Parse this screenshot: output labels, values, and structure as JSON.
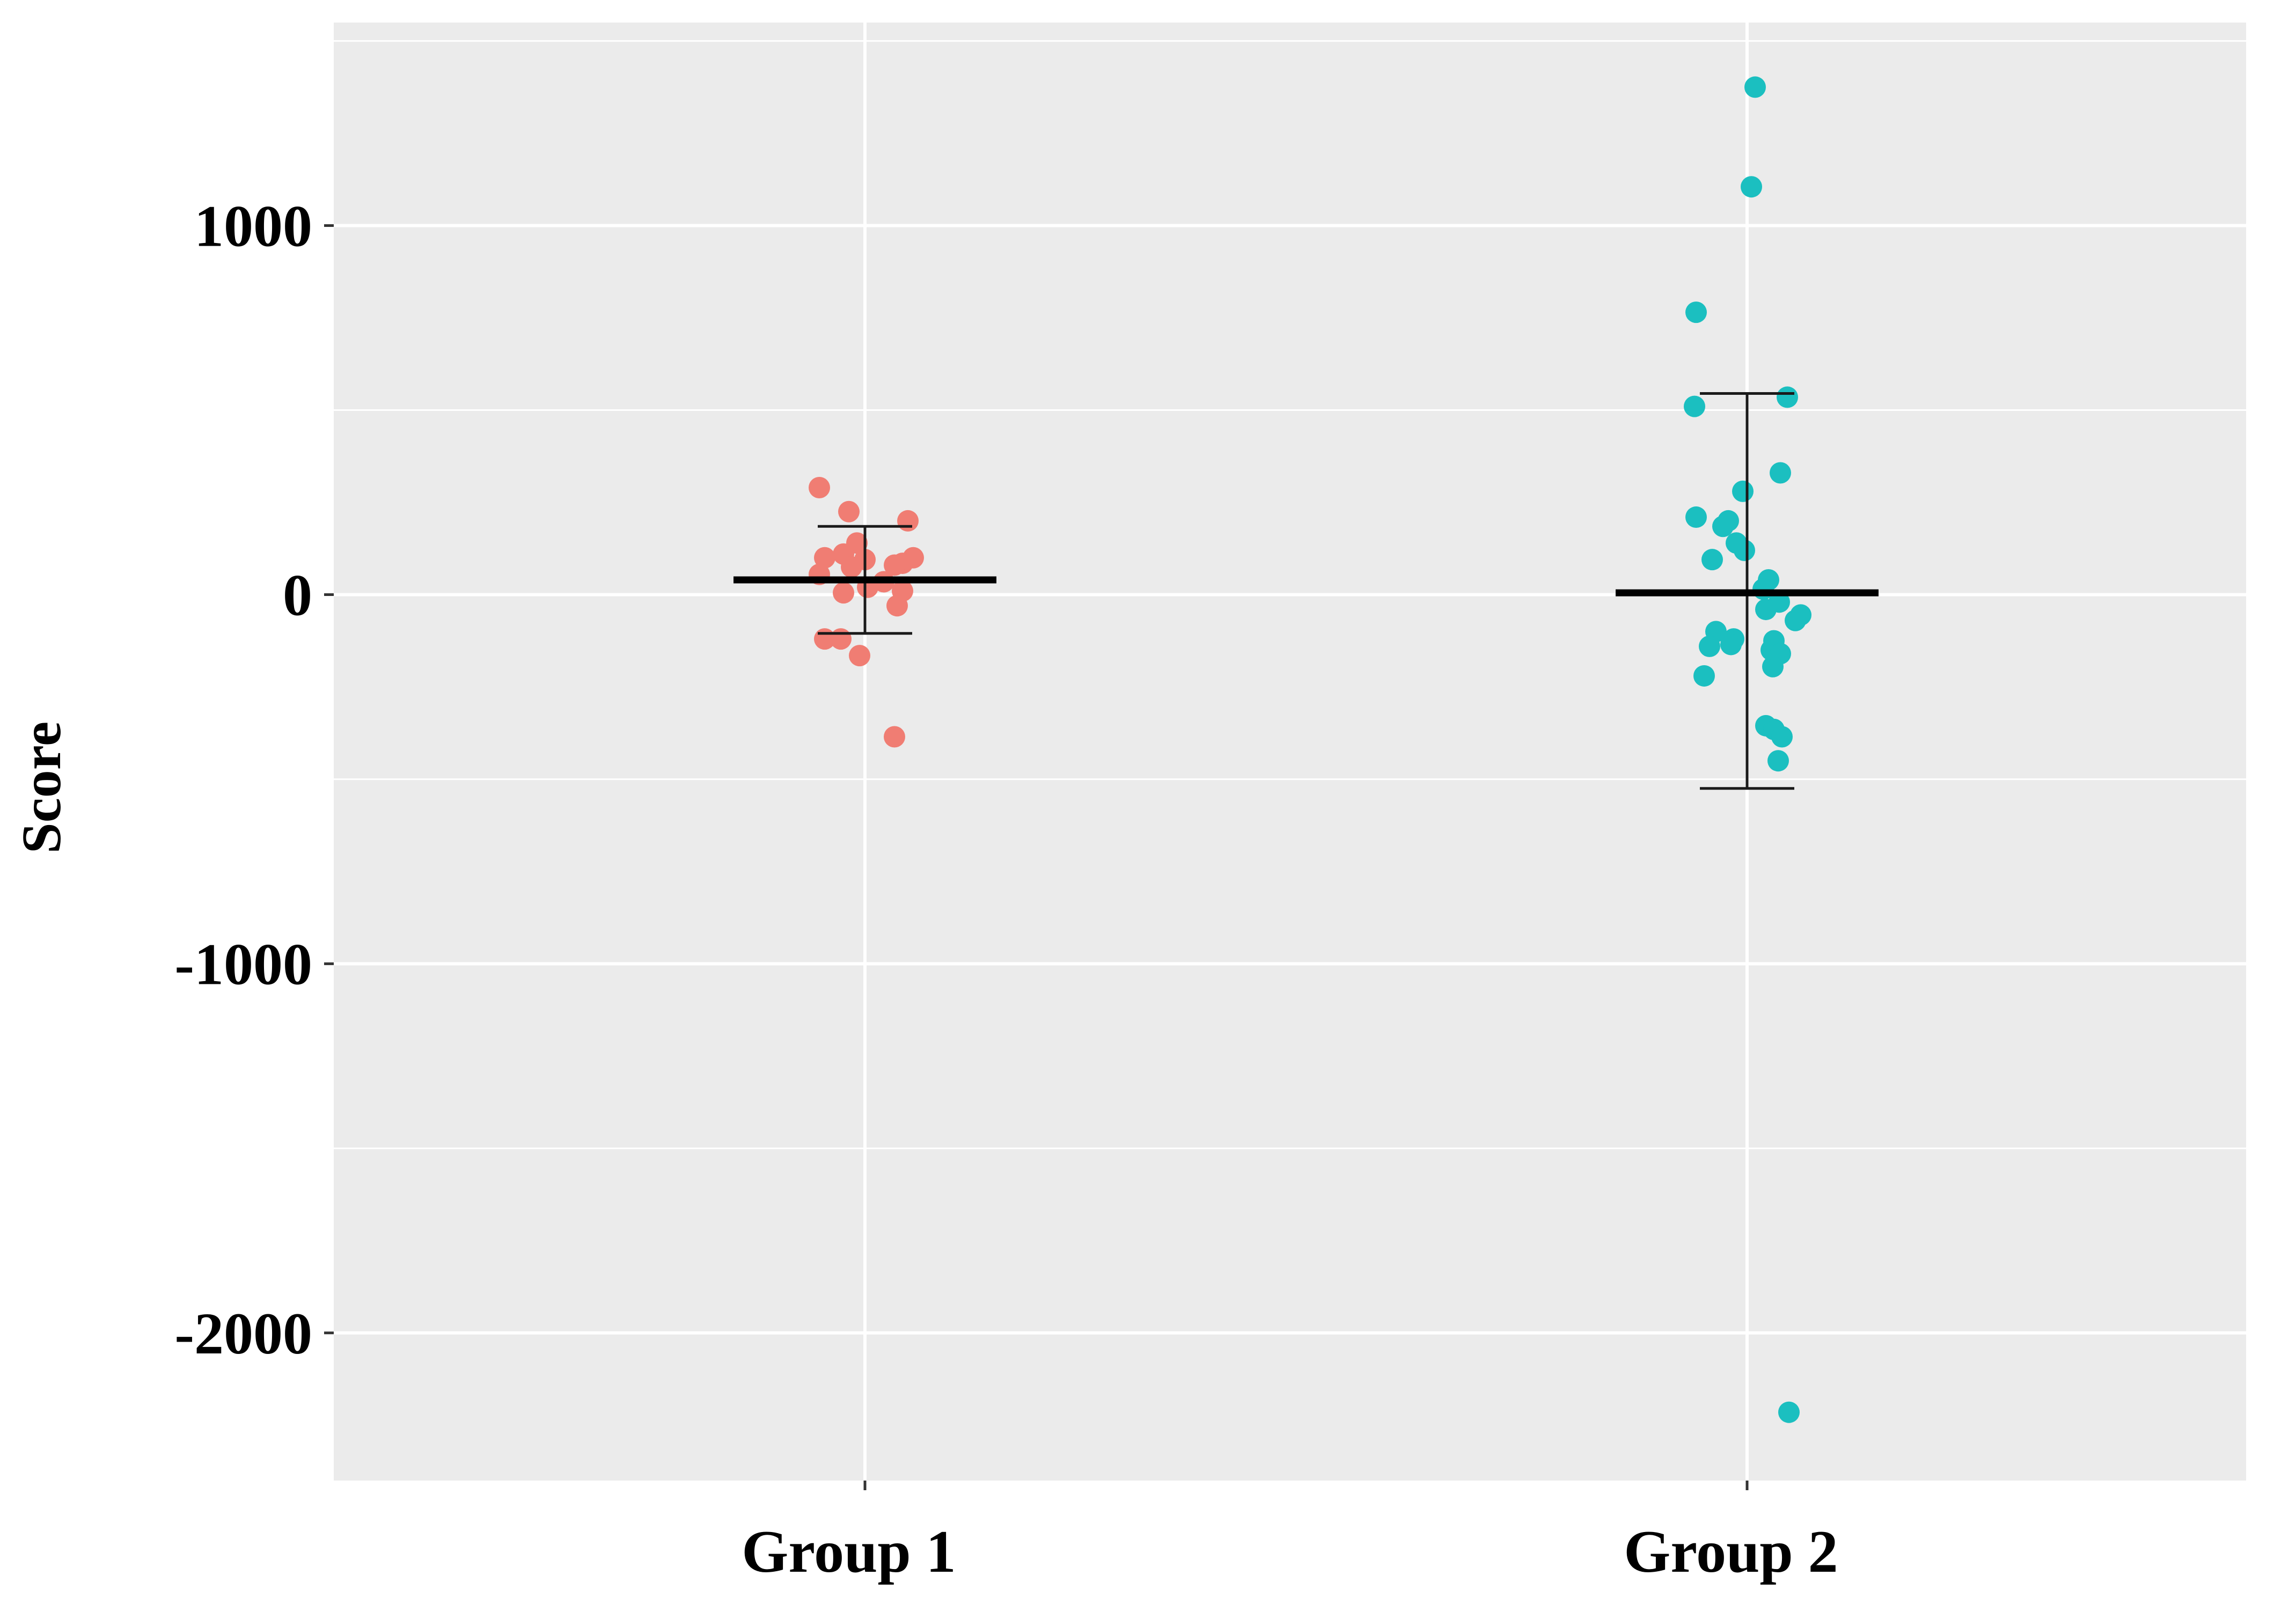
{
  "chart_data": {
    "type": "scatter",
    "subtype": "jittered-dot-plot-with-mean-and-sd",
    "title": "",
    "xlabel": "",
    "ylabel": "Score",
    "ylim": [
      -2400,
      1550
    ],
    "y_ticks": [
      1000,
      0,
      -1000,
      -2000
    ],
    "y_tick_labels": [
      "1000",
      "0",
      "-1000",
      "-2000"
    ],
    "y_minor_gridlines": [
      1500,
      500,
      -500,
      -1500
    ],
    "grid": true,
    "legend": "none",
    "categories": [
      "Group 1",
      "Group 2"
    ],
    "series": [
      {
        "name": "Group 1",
        "color": "#F07D73",
        "mean": 40,
        "sd_upper": 185,
        "sd_lower": -105,
        "points": [
          {
            "jitter": -0.085,
            "y": 290
          },
          {
            "jitter": -0.03,
            "y": 225
          },
          {
            "jitter": 0.08,
            "y": 200
          },
          {
            "jitter": -0.015,
            "y": 140
          },
          {
            "jitter": -0.04,
            "y": 110
          },
          {
            "jitter": -0.075,
            "y": 100
          },
          {
            "jitter": 0.0,
            "y": 95
          },
          {
            "jitter": 0.09,
            "y": 100
          },
          {
            "jitter": 0.07,
            "y": 85
          },
          {
            "jitter": 0.055,
            "y": 80
          },
          {
            "jitter": -0.025,
            "y": 75
          },
          {
            "jitter": -0.085,
            "y": 55
          },
          {
            "jitter": 0.035,
            "y": 35
          },
          {
            "jitter": 0.005,
            "y": 20
          },
          {
            "jitter": -0.04,
            "y": 5
          },
          {
            "jitter": 0.07,
            "y": 10
          },
          {
            "jitter": 0.06,
            "y": -30
          },
          {
            "jitter": -0.075,
            "y": -120
          },
          {
            "jitter": -0.045,
            "y": -120
          },
          {
            "jitter": -0.01,
            "y": -165
          },
          {
            "jitter": 0.055,
            "y": -385
          }
        ]
      },
      {
        "name": "Group 2",
        "color": "#1BBFC0",
        "mean": 5,
        "sd_upper": 545,
        "sd_lower": -525,
        "points": [
          {
            "jitter": 0.015,
            "y": 1375
          },
          {
            "jitter": 0.008,
            "y": 1105
          },
          {
            "jitter": -0.095,
            "y": 765
          },
          {
            "jitter": 0.075,
            "y": 535
          },
          {
            "jitter": -0.098,
            "y": 510
          },
          {
            "jitter": 0.062,
            "y": 330
          },
          {
            "jitter": -0.008,
            "y": 280
          },
          {
            "jitter": -0.095,
            "y": 210
          },
          {
            "jitter": -0.035,
            "y": 200
          },
          {
            "jitter": -0.045,
            "y": 185
          },
          {
            "jitter": -0.02,
            "y": 140
          },
          {
            "jitter": -0.005,
            "y": 120
          },
          {
            "jitter": -0.065,
            "y": 95
          },
          {
            "jitter": 0.04,
            "y": 40
          },
          {
            "jitter": 0.03,
            "y": 15
          },
          {
            "jitter": 0.06,
            "y": -20
          },
          {
            "jitter": 0.035,
            "y": -40
          },
          {
            "jitter": 0.1,
            "y": -55
          },
          {
            "jitter": 0.09,
            "y": -70
          },
          {
            "jitter": -0.058,
            "y": -100
          },
          {
            "jitter": -0.025,
            "y": -120
          },
          {
            "jitter": -0.03,
            "y": -135
          },
          {
            "jitter": 0.05,
            "y": -125
          },
          {
            "jitter": -0.07,
            "y": -140
          },
          {
            "jitter": 0.045,
            "y": -150
          },
          {
            "jitter": 0.062,
            "y": -160
          },
          {
            "jitter": 0.048,
            "y": -195
          },
          {
            "jitter": -0.08,
            "y": -220
          },
          {
            "jitter": 0.035,
            "y": -355
          },
          {
            "jitter": 0.05,
            "y": -365
          },
          {
            "jitter": 0.065,
            "y": -385
          },
          {
            "jitter": 0.058,
            "y": -450
          },
          {
            "jitter": 0.078,
            "y": -2215
          }
        ]
      }
    ]
  }
}
